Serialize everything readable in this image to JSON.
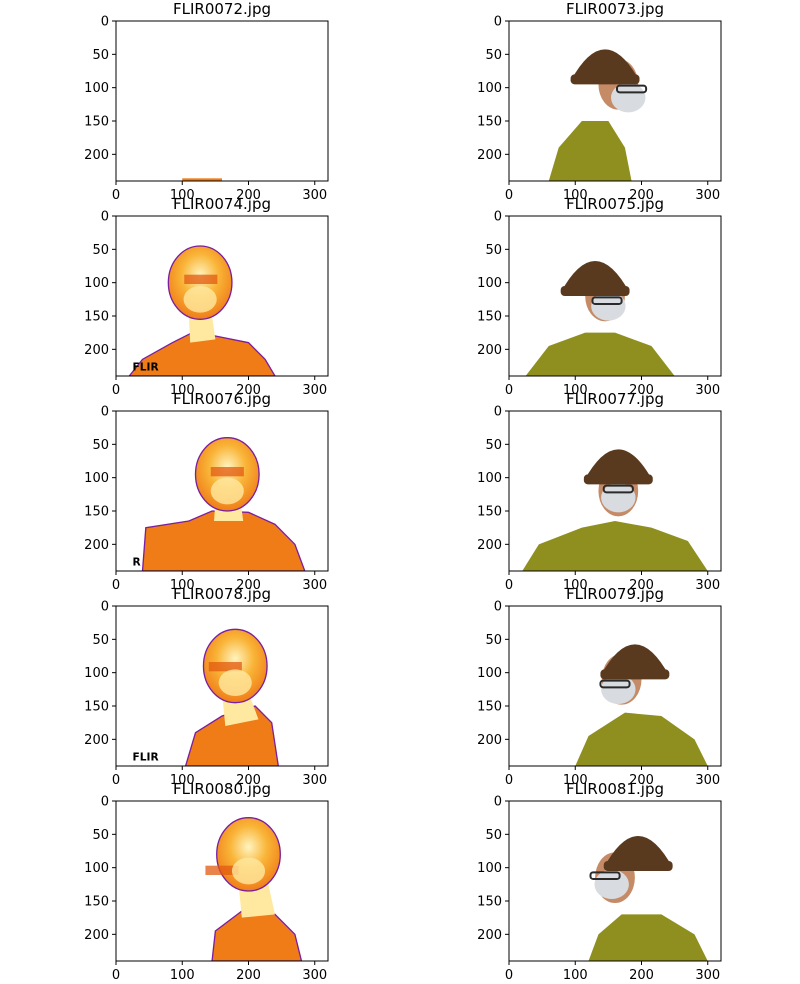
{
  "figure": {
    "axis": {
      "x_ticks": [
        "0",
        "100",
        "200",
        "300"
      ],
      "y_ticks": [
        "0",
        "50",
        "100",
        "150",
        "200"
      ]
    },
    "panels": [
      {
        "title": "FLIR0072.jpg",
        "kind": "thermal",
        "scene": "near-empty"
      },
      {
        "title": "FLIR0073.jpg",
        "kind": "visible",
        "scene": "profile-right"
      },
      {
        "title": "FLIR0074.jpg",
        "kind": "thermal",
        "scene": "three-quarter-right",
        "watermark": "FLIR"
      },
      {
        "title": "FLIR0075.jpg",
        "kind": "visible",
        "scene": "three-quarter-right"
      },
      {
        "title": "FLIR0076.jpg",
        "kind": "thermal",
        "scene": "frontal",
        "watermark": "R"
      },
      {
        "title": "FLIR0077.jpg",
        "kind": "visible",
        "scene": "frontal"
      },
      {
        "title": "FLIR0078.jpg",
        "kind": "thermal",
        "scene": "three-quarter-left",
        "watermark": "FLIR"
      },
      {
        "title": "FLIR0079.jpg",
        "kind": "visible",
        "scene": "three-quarter-left"
      },
      {
        "title": "FLIR0080.jpg",
        "kind": "thermal",
        "scene": "profile-left"
      },
      {
        "title": "FLIR0081.jpg",
        "kind": "visible",
        "scene": "profile-left"
      }
    ]
  },
  "colors": {
    "thermal_edge": "#7a1fa0",
    "thermal_outer": "#f07c17",
    "thermal_mid": "#f7a52a",
    "thermal_hot": "#ffe9a0",
    "thermal_shadow": "#e25a10",
    "beanie": "#5a3a1e",
    "shirt": "#8f8f1f",
    "skin": "#c58b67",
    "mask": "#d8dbe0",
    "glasses": "#2a2a2a",
    "axes": "#000000"
  }
}
